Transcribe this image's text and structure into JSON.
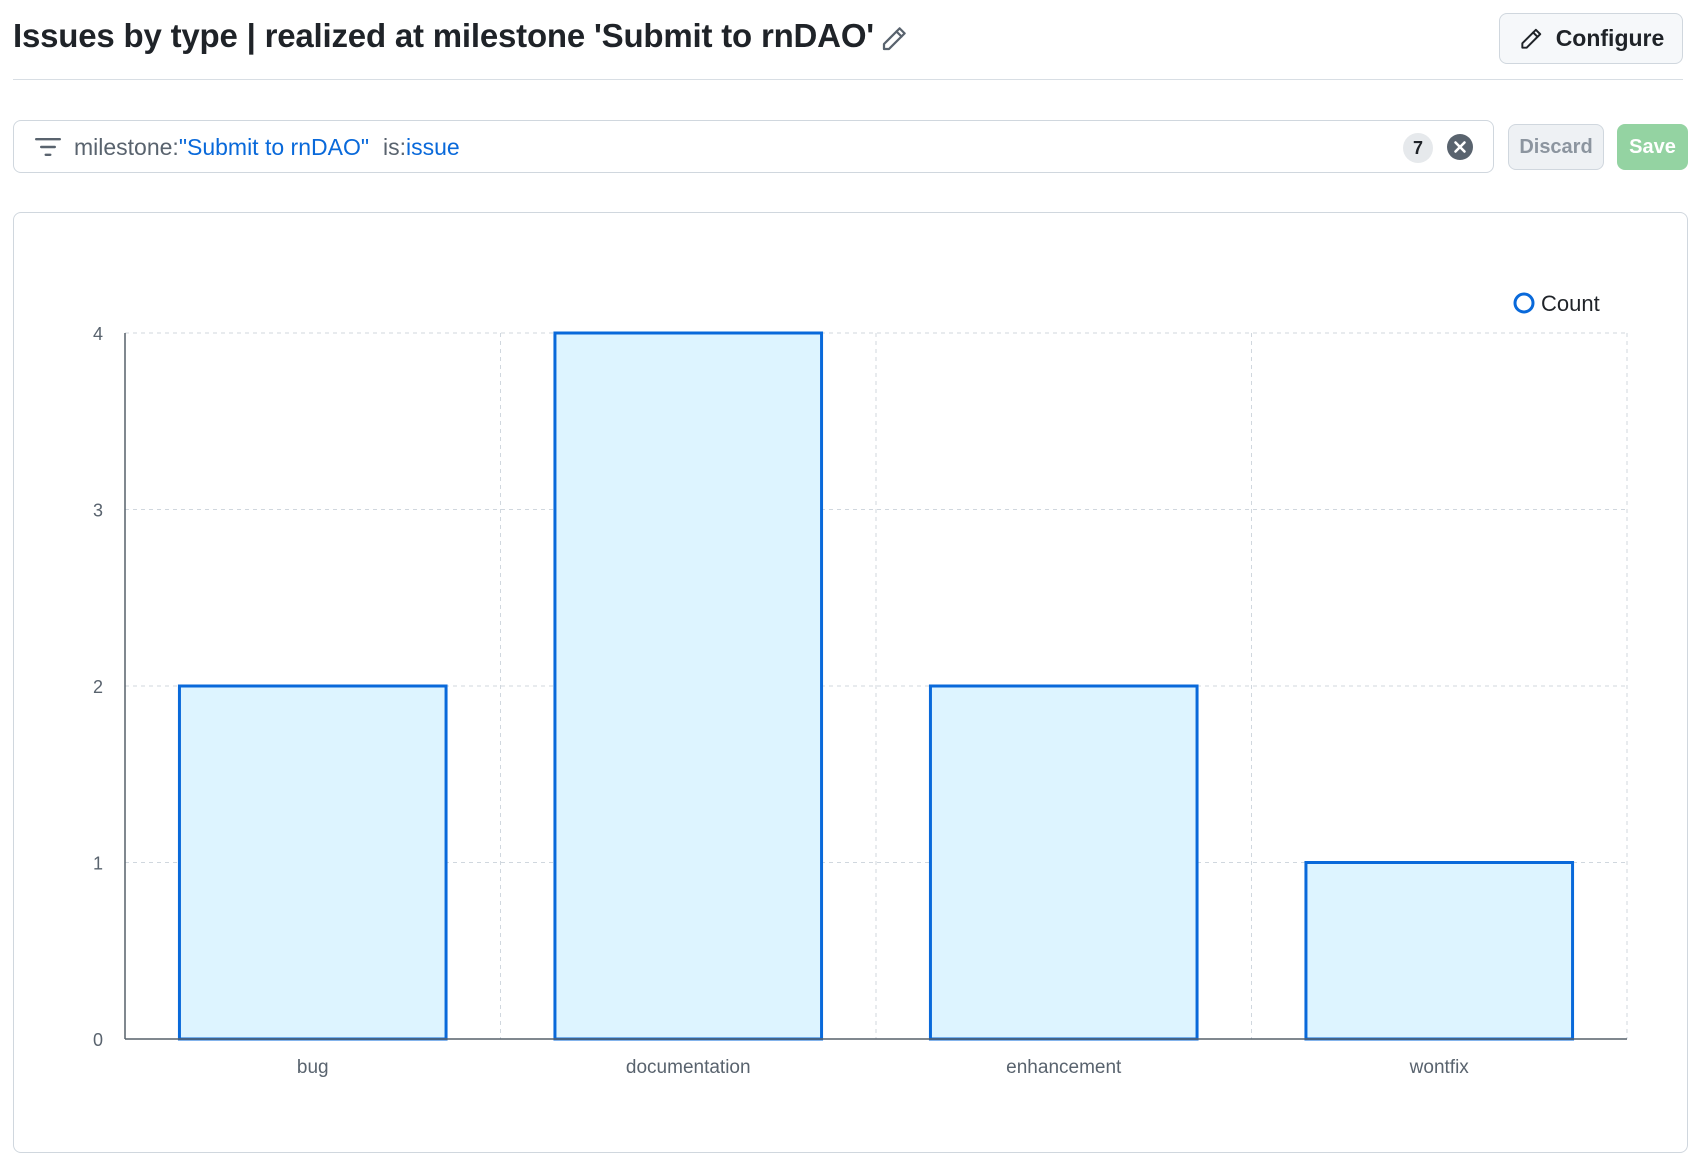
{
  "header": {
    "title": "Issues by type | realized at milestone 'Submit to rnDAO'",
    "configure_label": "Configure"
  },
  "filter": {
    "tokens": [
      {
        "key": "milestone:",
        "value": "\"Submit to rnDAO\""
      },
      {
        "key": "is:",
        "value": "issue"
      }
    ],
    "result_count": "7",
    "discard_label": "Discard",
    "save_label": "Save"
  },
  "colors": {
    "bar_fill": "#ddf4ff",
    "bar_stroke": "#0969da",
    "grid": "#d0d7de",
    "save_disabled": "#94d3a2"
  },
  "chart_data": {
    "type": "bar",
    "categories": [
      "bug",
      "documentation",
      "enhancement",
      "wontfix"
    ],
    "series": [
      {
        "name": "Count",
        "values": [
          2,
          4,
          2,
          1
        ]
      }
    ],
    "yticks": [
      "0",
      "1",
      "2",
      "3",
      "4"
    ],
    "ylim": [
      0,
      4
    ],
    "grid": true,
    "legend": "top-right"
  }
}
